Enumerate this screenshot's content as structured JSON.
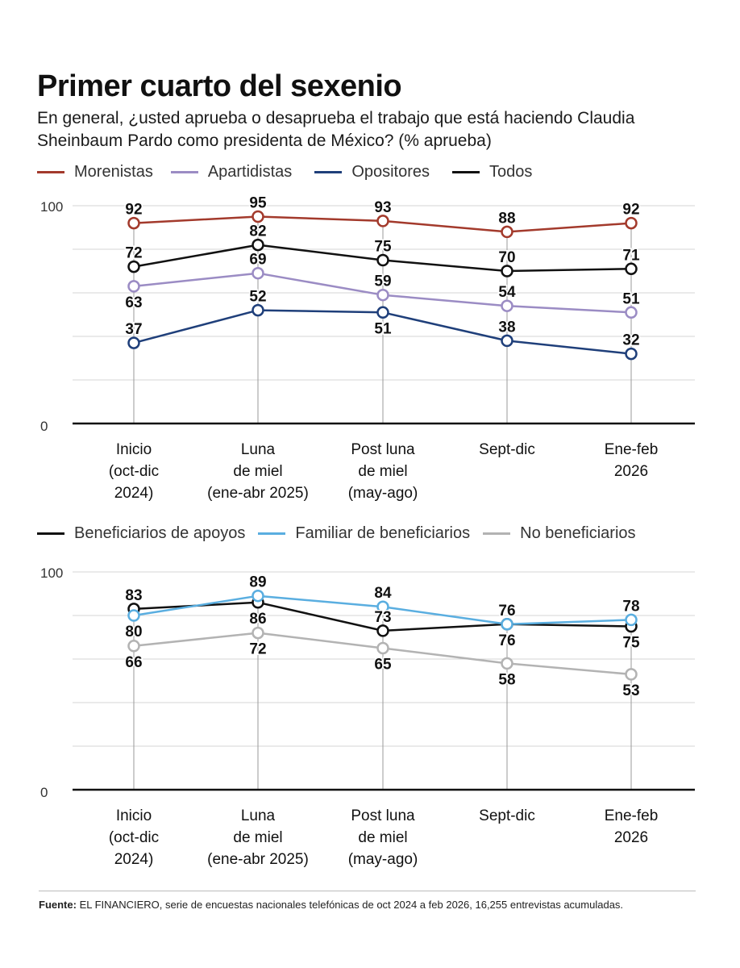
{
  "title": "Primer cuarto del sexenio",
  "subtitle": "En general, ¿usted aprueba o desaprueba el trabajo que está haciendo Claudia Sheinbaum Pardo como presidenta de México? (% aprueba)",
  "footer": {
    "label": "Fuente:",
    "text": " EL FINANCIERO, serie de encuestas nacionales telefónicas de oct 2024 a feb 2026, 16,255 entrevistas acumuladas."
  },
  "chart_data": [
    {
      "type": "line",
      "categories": [
        [
          "Inicio",
          "(oct-dic",
          "2024)"
        ],
        [
          "Luna",
          "de miel",
          "(ene-abr 2025)"
        ],
        [
          "Post luna",
          "de miel",
          "(may-ago)"
        ],
        [
          "Sept-dic"
        ],
        [
          "Ene-feb",
          "2026"
        ]
      ],
      "ylim": [
        0,
        100
      ],
      "ytick_labels": [
        "0",
        "100"
      ],
      "grid": true,
      "series": [
        {
          "name": "Morenistas",
          "color": "#a33a2c",
          "values": [
            92,
            95,
            93,
            88,
            92
          ],
          "label_pos": [
            "above",
            "above",
            "above",
            "above",
            "above"
          ]
        },
        {
          "name": "Apartidistas",
          "color": "#9b8cc4",
          "values": [
            63,
            69,
            59,
            54,
            51
          ],
          "label_pos": [
            "below",
            "above",
            "above",
            "above",
            "above"
          ]
        },
        {
          "name": "Opositores",
          "color": "#1f3f7a",
          "values": [
            37,
            52,
            51,
            38,
            32
          ],
          "label_pos": [
            "above",
            "above",
            "below",
            "above",
            "above"
          ]
        },
        {
          "name": "Todos",
          "color": "#111111",
          "values": [
            72,
            82,
            75,
            70,
            71
          ],
          "label_pos": [
            "above",
            "above",
            "above",
            "above",
            "above"
          ]
        }
      ]
    },
    {
      "type": "line",
      "categories": [
        [
          "Inicio",
          "(oct-dic",
          "2024)"
        ],
        [
          "Luna",
          "de miel",
          "(ene-abr 2025)"
        ],
        [
          "Post luna",
          "de miel",
          "(may-ago)"
        ],
        [
          "Sept-dic"
        ],
        [
          "Ene-feb",
          "2026"
        ]
      ],
      "ylim": [
        0,
        100
      ],
      "ytick_labels": [
        "0",
        "100"
      ],
      "grid": true,
      "series": [
        {
          "name": "Beneficiarios de apoyos",
          "color": "#111111",
          "values": [
            83,
            86,
            73,
            76,
            75
          ],
          "label_pos": [
            "above",
            "below",
            "above",
            "below",
            "below"
          ]
        },
        {
          "name": "Familiar de beneficiarios",
          "color": "#5aaee0",
          "values": [
            80,
            89,
            84,
            76,
            78
          ],
          "label_pos": [
            "below",
            "above",
            "above",
            "above",
            "above"
          ]
        },
        {
          "name": "No beneficiarios",
          "color": "#b3b3b3",
          "values": [
            66,
            72,
            65,
            58,
            53
          ],
          "label_pos": [
            "below",
            "below",
            "below",
            "below",
            "below"
          ]
        }
      ]
    }
  ]
}
